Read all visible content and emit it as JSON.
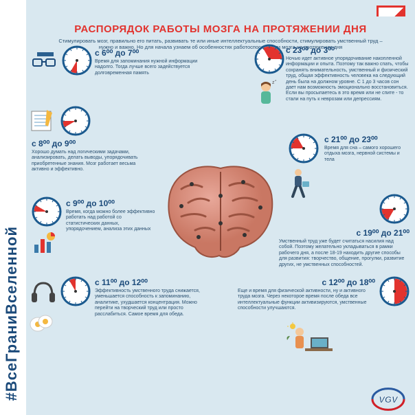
{
  "hashtag": "#ВсеГраниВселенной",
  "title": "РАСПОРЯДОК РАБОТЫ МОЗГА НА ПРОТЯЖЕНИИ ДНЯ",
  "subtitle": "Стимулировать мозг, правильно его питать, развивать те или иные интеллектуальные способности, стимулировать умственный труд – нужно и важно. Но для начала узнаем об особенностях работоспособности мозга на протяжении дня",
  "colors": {
    "accent": "#e2332e",
    "text": "#1b4a7a",
    "bg": "#d9e8f0",
    "clock_rim": "#1b5a8f",
    "clock_face": "#ffffff",
    "clock_fill": "#e2332e"
  },
  "blocks": {
    "b1": {
      "time": "с 6⁰⁰ до 7⁰⁰",
      "text": "Время для запоминания нужной информации надолго. Тогда лучше всего задействуется долговременная память"
    },
    "b2": {
      "time": "с 8⁰⁰ до 9⁰⁰",
      "text": "Хорошо думать над логическими задачами, анализировать, делать выводы, упорядочивать приобретенные знания. Мозг работает весьма активно и эффективно."
    },
    "b3": {
      "time": "с 9⁰⁰ до 10⁰⁰",
      "text": "Время, когда можно более эффективно работать над работой со статистических данных, упорядочением, анализа этих данных"
    },
    "b4": {
      "time": "с 11⁰⁰ до 12⁰⁰",
      "text": "Эффективность умственного труда снижается, уменьшается способность к запоминанию, аналитике, ухудшается концентрация. Можно перейти на творческий труд или просто расслабиться. Самое время для обеда."
    },
    "b5": {
      "time": "с 23⁰⁰ до 3⁰⁰",
      "text": "Ночью идет активное упорядочивание накопленной информации и опыта. Поэтому так важно спать, чтобы сохранять внимательность, умственный и физический труд, общая эффективность человека на следующий день была на должном уровне. С 1 до 3 часов сон дает нам возможность эмоционально восстановиться. Если вы просыпаетесь в это время или не спите - то стали на путь к неврозам или депрессиям."
    },
    "b6": {
      "time": "с 21⁰⁰ до 23⁰⁰",
      "text": "Время для сна – самого хорошего отдыха мозга, нервной системы и тела"
    },
    "b7": {
      "time": "с 19⁰⁰ до 21⁰⁰",
      "text": "Умственный труд уже будет считаться насилия над собой. Поэтому желательно укладываться в рамки рабочего дня, а после 18-19 находить другие способы для развития: творчество, общение, прогулки, развитие других, не умственных способностей."
    },
    "b8": {
      "time": "с 12⁰⁰ до 18⁰⁰",
      "text": "Еще и время для физической активности, ну и активного труда мозга. Через некоторое время после обеда все интеллектуальные функции активизируются, умственные способности улучшаются."
    }
  },
  "clocks": {
    "c1": {
      "start": 180,
      "end": 210
    },
    "c2": {
      "start": 240,
      "end": 270
    },
    "c3": {
      "start": 270,
      "end": 300
    },
    "c4": {
      "start": 330,
      "end": 360
    },
    "c5": {
      "start": 330,
      "end": 450
    },
    "c6": {
      "start": 270,
      "end": 330
    },
    "c7": {
      "start": 210,
      "end": 270
    },
    "c8": {
      "start": 0,
      "end": 180
    }
  }
}
